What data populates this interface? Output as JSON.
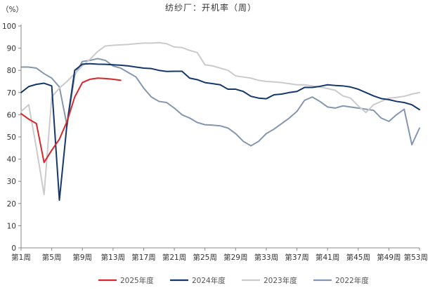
{
  "chart_data": {
    "type": "line",
    "title": "纺纱厂：开机率（周）",
    "unit": "（%）",
    "ylim": [
      0,
      100
    ],
    "yticks": [
      0,
      10,
      20,
      30,
      40,
      50,
      60,
      70,
      80,
      90,
      100
    ],
    "xlim": [
      1,
      53
    ],
    "xticks": [
      {
        "x": 1,
        "label": "第1周"
      },
      {
        "x": 5,
        "label": "第5周"
      },
      {
        "x": 9,
        "label": "第9周"
      },
      {
        "x": 13,
        "label": "第13周"
      },
      {
        "x": 17,
        "label": "第17周"
      },
      {
        "x": 21,
        "label": "第21周"
      },
      {
        "x": 25,
        "label": "第25周"
      },
      {
        "x": 29,
        "label": "第29周"
      },
      {
        "x": 33,
        "label": "第33周"
      },
      {
        "x": 37,
        "label": "第37周"
      },
      {
        "x": 41,
        "label": "第41周"
      },
      {
        "x": 45,
        "label": "第45周"
      },
      {
        "x": 49,
        "label": "第49周"
      },
      {
        "x": 53,
        "label": "第53周"
      }
    ],
    "grid": false,
    "legend_position": "bottom",
    "series": [
      {
        "name": "2025年度",
        "color": "#d9262c",
        "points": [
          [
            1,
            60.5
          ],
          [
            2,
            58
          ],
          [
            3,
            56
          ],
          [
            4,
            38.5
          ],
          [
            5,
            44
          ],
          [
            6,
            49
          ],
          [
            7,
            57
          ],
          [
            8,
            68
          ],
          [
            9,
            74.5
          ],
          [
            10,
            76
          ],
          [
            11,
            76.5
          ],
          [
            12,
            76.3
          ],
          [
            13,
            76
          ],
          [
            14,
            75.5
          ]
        ]
      },
      {
        "name": "2024年度",
        "color": "#14376b",
        "points": [
          [
            1,
            70
          ],
          [
            2,
            72.7
          ],
          [
            3,
            73.7
          ],
          [
            4,
            74.2
          ],
          [
            5,
            73
          ],
          [
            6,
            21.5
          ],
          [
            7,
            56
          ],
          [
            8,
            80
          ],
          [
            9,
            82.8
          ],
          [
            10,
            83
          ],
          [
            11,
            82.8
          ],
          [
            12,
            82.7
          ],
          [
            13,
            82.5
          ],
          [
            14,
            82.3
          ],
          [
            15,
            82
          ],
          [
            16,
            81.5
          ],
          [
            17,
            81
          ],
          [
            18,
            80.8
          ],
          [
            19,
            80
          ],
          [
            20,
            79.5
          ],
          [
            21,
            79.6
          ],
          [
            22,
            79.6
          ],
          [
            23,
            76.5
          ],
          [
            24,
            75.8
          ],
          [
            25,
            74.5
          ],
          [
            26,
            74
          ],
          [
            27,
            73.5
          ],
          [
            28,
            71.5
          ],
          [
            29,
            71.5
          ],
          [
            30,
            70.5
          ],
          [
            31,
            68.3
          ],
          [
            32,
            67.5
          ],
          [
            33,
            67.2
          ],
          [
            34,
            69
          ],
          [
            35,
            69.3
          ],
          [
            36,
            70
          ],
          [
            37,
            70.5
          ],
          [
            38,
            72.3
          ],
          [
            39,
            72.3
          ],
          [
            40,
            72.8
          ],
          [
            41,
            73.5
          ],
          [
            42,
            73.2
          ],
          [
            43,
            73
          ],
          [
            44,
            72.5
          ],
          [
            45,
            71.5
          ],
          [
            46,
            70
          ],
          [
            47,
            68.5
          ],
          [
            48,
            67.3
          ],
          [
            49,
            66.8
          ],
          [
            50,
            66
          ],
          [
            51,
            65.5
          ],
          [
            52,
            64.5
          ],
          [
            53,
            62.3
          ]
        ]
      },
      {
        "name": "2023年度",
        "color": "#cbcbcb",
        "points": [
          [
            1,
            61.5
          ],
          [
            2,
            64.5
          ],
          [
            3,
            45
          ],
          [
            4,
            24
          ],
          [
            5,
            68
          ],
          [
            6,
            72
          ],
          [
            7,
            75
          ],
          [
            8,
            78.5
          ],
          [
            9,
            82
          ],
          [
            10,
            85
          ],
          [
            11,
            88.5
          ],
          [
            12,
            91
          ],
          [
            13,
            91.3
          ],
          [
            14,
            91.5
          ],
          [
            15,
            91.7
          ],
          [
            16,
            92
          ],
          [
            17,
            92.3
          ],
          [
            18,
            92.3
          ],
          [
            19,
            92.5
          ],
          [
            20,
            92
          ],
          [
            21,
            90.5
          ],
          [
            22,
            90.3
          ],
          [
            23,
            89
          ],
          [
            24,
            88
          ],
          [
            25,
            82.5
          ],
          [
            26,
            82
          ],
          [
            27,
            81
          ],
          [
            28,
            80
          ],
          [
            29,
            77.5
          ],
          [
            30,
            77
          ],
          [
            31,
            76.5
          ],
          [
            32,
            75.5
          ],
          [
            33,
            75
          ],
          [
            34,
            74.8
          ],
          [
            35,
            74.5
          ],
          [
            36,
            74
          ],
          [
            37,
            73.5
          ],
          [
            38,
            73.5
          ],
          [
            39,
            73
          ],
          [
            40,
            72.5
          ],
          [
            41,
            71.8
          ],
          [
            42,
            71
          ],
          [
            43,
            68.5
          ],
          [
            44,
            67.5
          ],
          [
            45,
            64
          ],
          [
            46,
            61
          ],
          [
            47,
            64.5
          ],
          [
            48,
            66
          ],
          [
            49,
            67.5
          ],
          [
            50,
            67.8
          ],
          [
            51,
            68.3
          ],
          [
            52,
            69.3
          ],
          [
            53,
            70
          ]
        ]
      },
      {
        "name": "2022年度",
        "color": "#8497b0",
        "points": [
          [
            1,
            81.5
          ],
          [
            2,
            81.5
          ],
          [
            3,
            81
          ],
          [
            4,
            78.5
          ],
          [
            5,
            76.5
          ],
          [
            6,
            72.5
          ],
          [
            7,
            55
          ],
          [
            8,
            78
          ],
          [
            9,
            84
          ],
          [
            10,
            84.5
          ],
          [
            11,
            85.3
          ],
          [
            12,
            84.5
          ],
          [
            13,
            82
          ],
          [
            14,
            81
          ],
          [
            15,
            79
          ],
          [
            16,
            77
          ],
          [
            17,
            72
          ],
          [
            18,
            68
          ],
          [
            19,
            66
          ],
          [
            20,
            65.5
          ],
          [
            21,
            63
          ],
          [
            22,
            60
          ],
          [
            23,
            58.5
          ],
          [
            24,
            56.5
          ],
          [
            25,
            55.5
          ],
          [
            26,
            55.3
          ],
          [
            27,
            55
          ],
          [
            28,
            54
          ],
          [
            29,
            51.5
          ],
          [
            30,
            48
          ],
          [
            31,
            46
          ],
          [
            32,
            48
          ],
          [
            33,
            51.5
          ],
          [
            34,
            53.5
          ],
          [
            35,
            56
          ],
          [
            36,
            58.5
          ],
          [
            37,
            61.5
          ],
          [
            38,
            66.5
          ],
          [
            39,
            68
          ],
          [
            40,
            66
          ],
          [
            41,
            63.5
          ],
          [
            42,
            63
          ],
          [
            43,
            64
          ],
          [
            44,
            63.5
          ],
          [
            45,
            63
          ],
          [
            46,
            62.5
          ],
          [
            47,
            62
          ],
          [
            48,
            58.5
          ],
          [
            49,
            57
          ],
          [
            50,
            60
          ],
          [
            51,
            62.5
          ],
          [
            52,
            46.5
          ],
          [
            53,
            54
          ]
        ]
      }
    ]
  }
}
